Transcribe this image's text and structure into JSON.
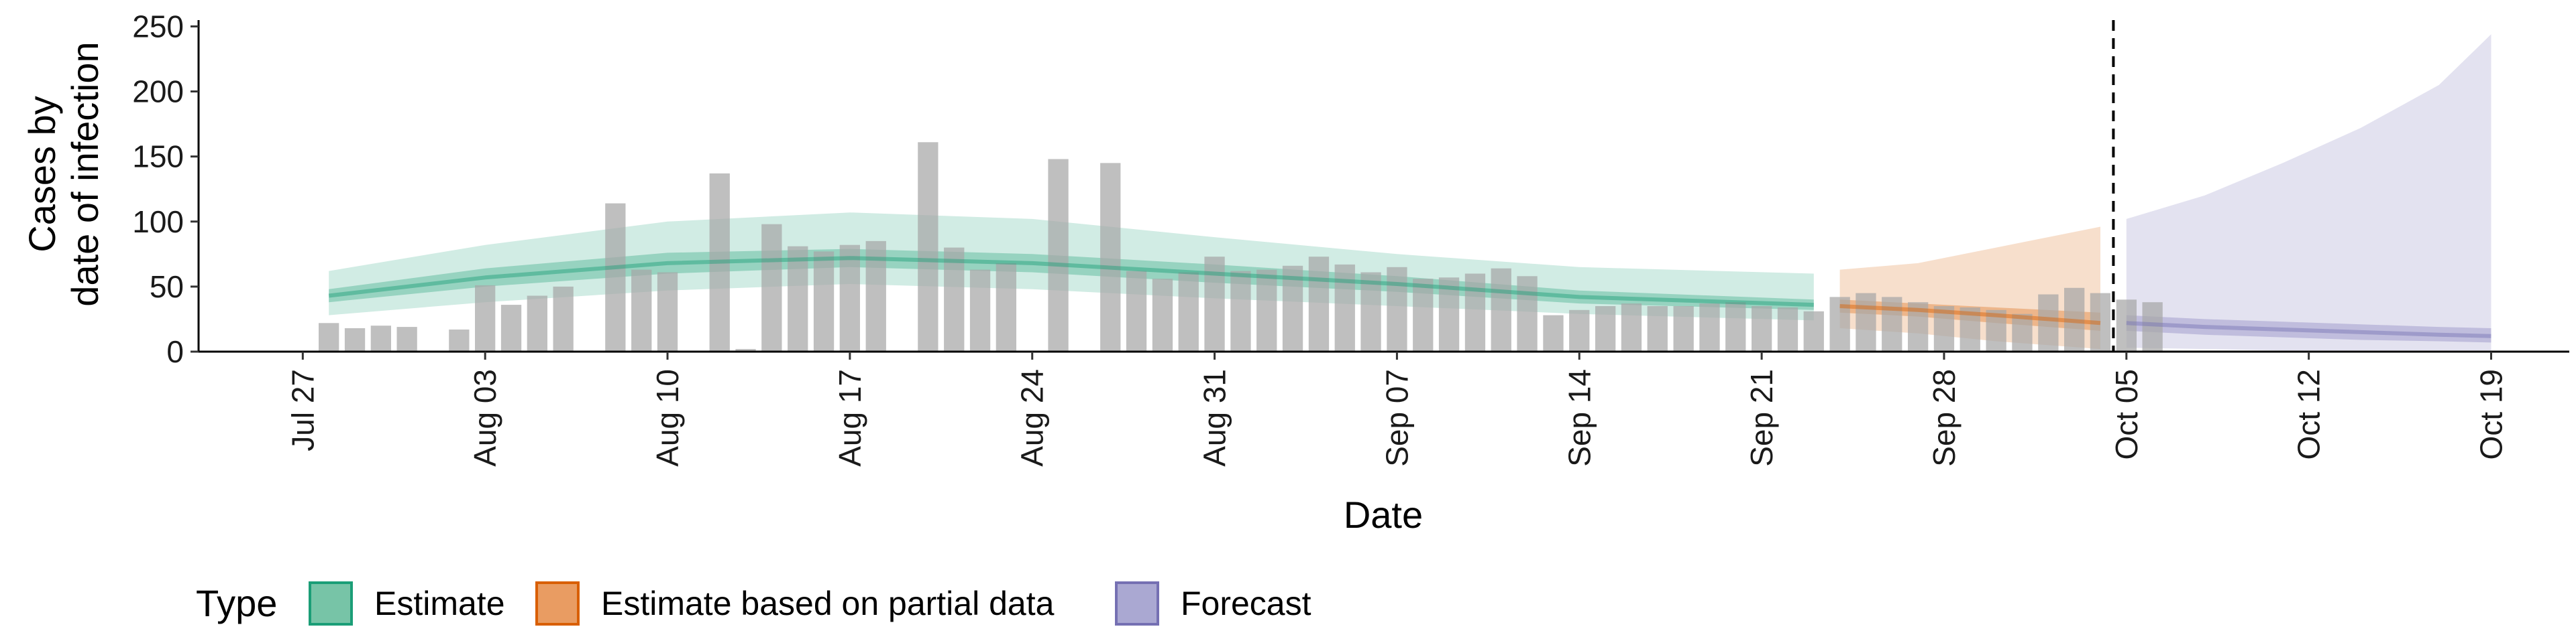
{
  "chart_data": {
    "type": "bar",
    "xlabel": "Date",
    "ylabel_lines": [
      "Cases by",
      "date of infection"
    ],
    "ylim": [
      0,
      260
    ],
    "y_ticks": [
      0,
      50,
      100,
      150,
      200,
      250
    ],
    "x_range": [
      "2020-07-23",
      "2020-10-22"
    ],
    "x_ticks": [
      {
        "date": "2020-07-27",
        "label": "Jul 27"
      },
      {
        "date": "2020-08-03",
        "label": "Aug 03"
      },
      {
        "date": "2020-08-10",
        "label": "Aug 10"
      },
      {
        "date": "2020-08-17",
        "label": "Aug 17"
      },
      {
        "date": "2020-08-24",
        "label": "Aug 24"
      },
      {
        "date": "2020-08-31",
        "label": "Aug 31"
      },
      {
        "date": "2020-09-07",
        "label": "Sep 07"
      },
      {
        "date": "2020-09-14",
        "label": "Sep 14"
      },
      {
        "date": "2020-09-21",
        "label": "Sep 21"
      },
      {
        "date": "2020-09-28",
        "label": "Sep 28"
      },
      {
        "date": "2020-10-05",
        "label": "Oct 05"
      },
      {
        "date": "2020-10-12",
        "label": "Oct 12"
      },
      {
        "date": "2020-10-19",
        "label": "Oct 19"
      }
    ],
    "bars": {
      "start_date": "2020-07-28",
      "color": "#a6a6a6",
      "values": [
        22,
        18,
        20,
        19,
        0,
        17,
        51,
        36,
        43,
        50,
        0,
        114,
        63,
        61,
        0,
        137,
        2,
        98,
        81,
        77,
        82,
        85,
        0,
        161,
        80,
        63,
        68,
        0,
        148,
        0,
        145,
        62,
        56,
        61,
        73,
        62,
        63,
        66,
        73,
        67,
        61,
        65,
        56,
        57,
        60,
        64,
        58,
        28,
        32,
        35,
        37,
        35,
        35,
        37,
        38,
        35,
        34,
        31,
        42,
        45,
        42,
        38,
        35,
        34,
        32,
        29,
        44,
        49,
        45,
        40,
        38
      ]
    },
    "forecast_cutoff": "2020-10-04",
    "series": [
      {
        "name": "Estimate",
        "fill": "#1b9e77",
        "dates": [
          "2020-07-28",
          "2020-08-03",
          "2020-08-10",
          "2020-08-17",
          "2020-08-24",
          "2020-08-31",
          "2020-09-07",
          "2020-09-14",
          "2020-09-23"
        ],
        "median": [
          43,
          57,
          68,
          72,
          68,
          60,
          52,
          42,
          36
        ],
        "ci50_lo": [
          38,
          50,
          60,
          65,
          61,
          53,
          46,
          37,
          32
        ],
        "ci50_hi": [
          48,
          64,
          76,
          79,
          75,
          67,
          58,
          47,
          40
        ],
        "ci90_lo": [
          28,
          38,
          47,
          52,
          48,
          41,
          35,
          29,
          24
        ],
        "ci90_hi": [
          62,
          82,
          100,
          107,
          102,
          88,
          75,
          65,
          60
        ]
      },
      {
        "name": "Estimate based on partial data",
        "fill": "#d95f02",
        "dates": [
          "2020-09-24",
          "2020-09-27",
          "2020-09-30",
          "2020-10-04"
        ],
        "median": [
          35,
          32,
          28,
          22
        ],
        "ci50_lo": [
          30,
          27,
          22,
          16
        ],
        "ci50_hi": [
          40,
          37,
          34,
          30
        ],
        "ci90_lo": [
          18,
          14,
          8,
          2
        ],
        "ci90_hi": [
          63,
          68,
          80,
          96
        ]
      },
      {
        "name": "Forecast",
        "fill": "#7570b3",
        "dates": [
          "2020-10-05",
          "2020-10-08",
          "2020-10-11",
          "2020-10-14",
          "2020-10-17",
          "2020-10-19"
        ],
        "median": [
          22,
          19,
          17,
          15,
          13,
          12
        ],
        "ci50_lo": [
          16,
          13,
          11,
          9,
          8,
          7
        ],
        "ci50_hi": [
          28,
          25,
          23,
          21,
          19,
          18
        ],
        "ci90_lo": [
          3,
          2,
          1,
          1,
          1,
          1
        ],
        "ci90_hi": [
          102,
          120,
          145,
          172,
          205,
          244
        ]
      }
    ],
    "grid": false,
    "legend": {
      "position": "bottom-left",
      "title": "Type",
      "entries": [
        {
          "label": "Estimate",
          "fill": "#77c4a7",
          "stroke": "#1b9e77"
        },
        {
          "label": "Estimate based on partial data",
          "fill": "#e99c62",
          "stroke": "#d95f02"
        },
        {
          "label": "Forecast",
          "fill": "#aaa8d2",
          "stroke": "#7570b3"
        }
      ]
    }
  }
}
